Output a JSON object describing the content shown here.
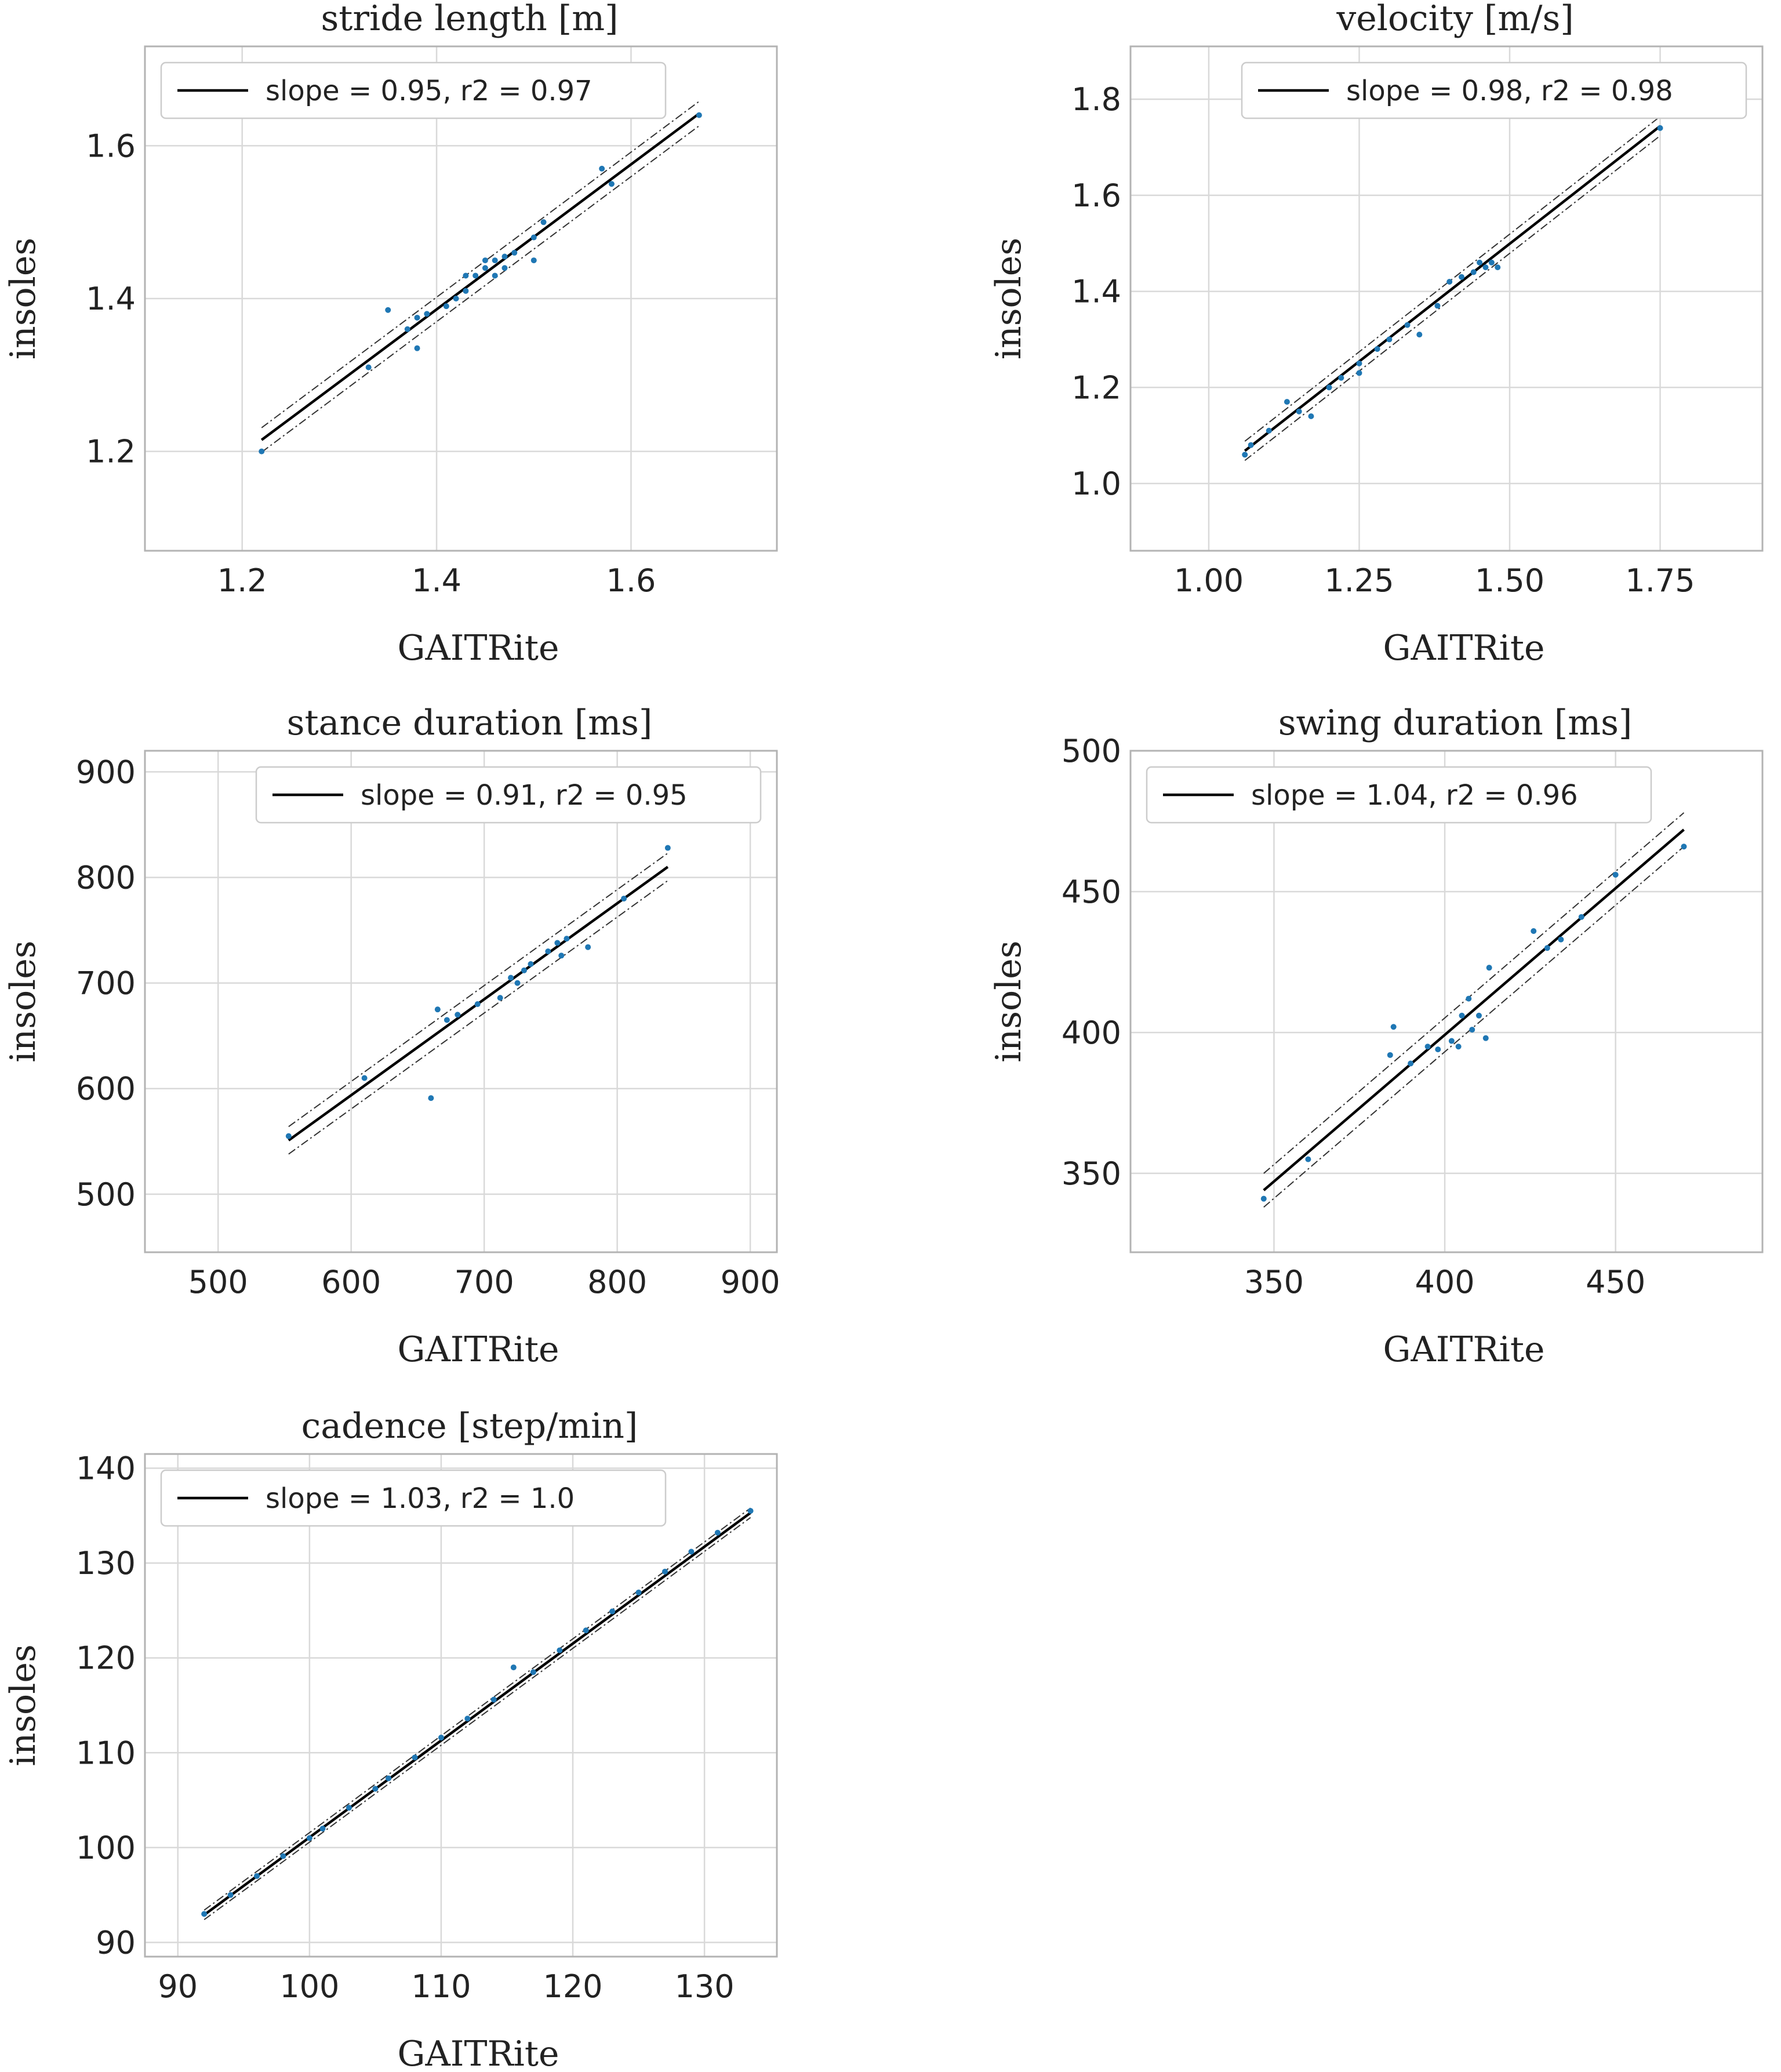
{
  "chart_data": [
    {
      "type": "scatter",
      "title": "stride length [m]",
      "xlabel": "GAITRite",
      "ylabel": "insoles",
      "xlim": [
        1.1,
        1.75
      ],
      "ylim": [
        1.07,
        1.73
      ],
      "xticks": [
        "1.2",
        "1.4",
        "1.6"
      ],
      "yticks": [
        "1.2",
        "1.4",
        "1.6"
      ],
      "grid": true,
      "legend": {
        "position": "top-left",
        "label": "slope = 0.95,  r2 = 0.97"
      },
      "fit": {
        "x": [
          1.22,
          1.67
        ],
        "y": [
          1.215,
          1.642
        ],
        "ci_halfwidth": 0.016
      },
      "points": {
        "x": [
          1.22,
          1.33,
          1.35,
          1.37,
          1.38,
          1.38,
          1.39,
          1.41,
          1.42,
          1.43,
          1.43,
          1.44,
          1.45,
          1.45,
          1.46,
          1.46,
          1.47,
          1.47,
          1.48,
          1.5,
          1.5,
          1.51,
          1.57,
          1.58,
          1.67
        ],
        "y": [
          1.2,
          1.31,
          1.385,
          1.36,
          1.335,
          1.375,
          1.38,
          1.39,
          1.4,
          1.41,
          1.43,
          1.43,
          1.44,
          1.45,
          1.43,
          1.45,
          1.44,
          1.455,
          1.46,
          1.45,
          1.48,
          1.5,
          1.57,
          1.55,
          1.64
        ]
      }
    },
    {
      "type": "scatter",
      "title": "velocity [m/s]",
      "xlabel": "GAITRite",
      "ylabel": "insoles",
      "xlim": [
        0.87,
        1.92
      ],
      "ylim": [
        0.86,
        1.91
      ],
      "xticks": [
        "1.00",
        "1.25",
        "1.50",
        "1.75"
      ],
      "yticks": [
        "1.0",
        "1.2",
        "1.4",
        "1.6",
        "1.8"
      ],
      "grid": true,
      "legend": {
        "position": "top-right",
        "label": "slope = 0.98,  r2 = 0.98"
      },
      "fit": {
        "x": [
          1.06,
          1.75
        ],
        "y": [
          1.068,
          1.744
        ],
        "ci_halfwidth": 0.02
      },
      "points": {
        "x": [
          1.06,
          1.07,
          1.1,
          1.13,
          1.15,
          1.17,
          1.2,
          1.22,
          1.25,
          1.25,
          1.28,
          1.3,
          1.33,
          1.35,
          1.38,
          1.4,
          1.42,
          1.44,
          1.45,
          1.46,
          1.47,
          1.48,
          1.75
        ],
        "y": [
          1.06,
          1.08,
          1.11,
          1.17,
          1.15,
          1.14,
          1.2,
          1.22,
          1.23,
          1.25,
          1.28,
          1.3,
          1.33,
          1.31,
          1.37,
          1.42,
          1.43,
          1.44,
          1.46,
          1.45,
          1.46,
          1.45,
          1.74
        ]
      }
    },
    {
      "type": "scatter",
      "title": "stance duration [ms]",
      "xlabel": "GAITRite",
      "ylabel": "insoles",
      "xlim": [
        445,
        920
      ],
      "ylim": [
        445,
        920
      ],
      "xticks": [
        "500",
        "600",
        "700",
        "800",
        "900"
      ],
      "yticks": [
        "500",
        "600",
        "700",
        "800",
        "900"
      ],
      "grid": true,
      "legend": {
        "position": "top-right",
        "label": "slope = 0.91,  r2 = 0.95"
      },
      "fit": {
        "x": [
          553,
          838
        ],
        "y": [
          551,
          810
        ],
        "ci_halfwidth": 13
      },
      "points": {
        "x": [
          553,
          610,
          660,
          665,
          672,
          680,
          695,
          712,
          720,
          725,
          730,
          735,
          748,
          755,
          758,
          762,
          778,
          805,
          838
        ],
        "y": [
          555,
          610,
          591,
          675,
          665,
          670,
          680,
          686,
          705,
          700,
          712,
          718,
          730,
          738,
          726,
          742,
          734,
          780,
          828
        ]
      }
    },
    {
      "type": "scatter",
      "title": "swing duration [ms]",
      "xlabel": "GAITRite",
      "ylabel": "insoles",
      "xlim": [
        308,
        493
      ],
      "ylim": [
        322,
        500
      ],
      "xticks": [
        "350",
        "400",
        "450"
      ],
      "yticks": [
        "350",
        "400",
        "450",
        "500"
      ],
      "grid": true,
      "legend": {
        "position": "top-left",
        "label": "slope = 1.04,  r2 = 0.96"
      },
      "fit": {
        "x": [
          347,
          470
        ],
        "y": [
          344,
          472
        ],
        "ci_halfwidth": 6
      },
      "points": {
        "x": [
          347,
          360,
          384,
          385,
          390,
          395,
          398,
          402,
          404,
          405,
          407,
          408,
          410,
          412,
          413,
          426,
          430,
          434,
          440,
          450,
          470
        ],
        "y": [
          341,
          355,
          392,
          402,
          389,
          395,
          394,
          397,
          395,
          406,
          412,
          401,
          406,
          398,
          423,
          436,
          430,
          433,
          441,
          456,
          466
        ]
      }
    },
    {
      "type": "scatter",
      "title": "cadence [step/min]",
      "xlabel": "GAITRite",
      "ylabel": "insoles",
      "xlim": [
        87.5,
        135.5
      ],
      "ylim": [
        88.5,
        141.5
      ],
      "xticks": [
        "90",
        "100",
        "110",
        "120",
        "130"
      ],
      "yticks": [
        "90",
        "100",
        "110",
        "120",
        "130",
        "140"
      ],
      "grid": true,
      "legend": {
        "position": "top-left",
        "label": "slope = 1.03,  r2 = 1.0"
      },
      "fit": {
        "x": [
          92,
          133.5
        ],
        "y": [
          92.9,
          135.3
        ],
        "ci_halfwidth": 0.5
      },
      "points": {
        "x": [
          92,
          94,
          96,
          98,
          100,
          101,
          103,
          105,
          106,
          108,
          110,
          112,
          114,
          115.5,
          117,
          119,
          121,
          123,
          125,
          127,
          129,
          131,
          133.5
        ],
        "y": [
          93,
          95,
          97,
          99.1,
          101,
          102,
          104.2,
          106.2,
          107.3,
          109.5,
          111.6,
          113.6,
          115.6,
          119,
          118.5,
          120.8,
          122.9,
          124.9,
          126.9,
          129.1,
          131.2,
          133.2,
          135.5
        ]
      }
    }
  ]
}
